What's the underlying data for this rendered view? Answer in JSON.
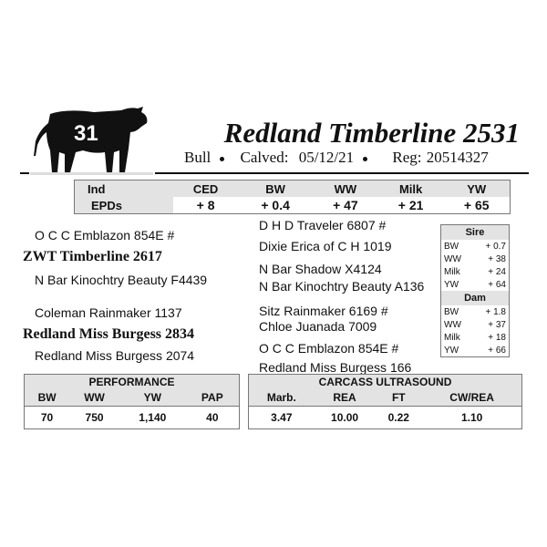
{
  "lot_number": "31",
  "animal": {
    "name": "Redland Timberline 2531",
    "sex": "Bull",
    "calved_label": "Calved:",
    "calved": "05/12/21",
    "reg_label": "Reg:",
    "reg": "20514327"
  },
  "epds": {
    "row_labels": [
      "Ind",
      "EPDs"
    ],
    "headers": [
      "CED",
      "BW",
      "WW",
      "Milk",
      "YW"
    ],
    "values": [
      "+ 8",
      "+ 0.4",
      "+ 47",
      "+ 21",
      "+ 65"
    ]
  },
  "pedigree": {
    "sire_sire": "O C C Emblazon 854E #",
    "sire": "ZWT Timberline 2617",
    "sire_dam": "N Bar Kinochtry Beauty F4439",
    "dam_sire": "Coleman Rainmaker 1137",
    "dam": "Redland Miss Burgess 2834",
    "dam_dam": "Redland Miss Burgess 2074",
    "ggp": [
      "D H D Traveler 6807 #",
      "Dixie Erica of C H 1019",
      "N Bar Shadow X4124",
      "N Bar Kinochtry Beauty A136",
      "Sitz Rainmaker 6169 #",
      "Chloe Juanada 7009",
      "O C C Emblazon 854E #",
      "Redland Miss Burgess 166"
    ]
  },
  "parent_epds": {
    "sire_label": "Sire",
    "sire": [
      {
        "k": "BW",
        "v": "+ 0.7"
      },
      {
        "k": "WW",
        "v": "+ 38"
      },
      {
        "k": "Milk",
        "v": "+ 24"
      },
      {
        "k": "YW",
        "v": "+ 64"
      }
    ],
    "dam_label": "Dam",
    "dam": [
      {
        "k": "BW",
        "v": "+ 1.8"
      },
      {
        "k": "WW",
        "v": "+ 37"
      },
      {
        "k": "Milk",
        "v": "+ 18"
      },
      {
        "k": "YW",
        "v": "+ 66"
      }
    ]
  },
  "performance": {
    "title": "PERFORMANCE",
    "headers": [
      "BW",
      "WW",
      "YW",
      "PAP"
    ],
    "values": [
      "70",
      "750",
      "1,140",
      "40"
    ]
  },
  "carcass": {
    "title": "CARCASS ULTRASOUND",
    "headers": [
      "Marb.",
      "REA",
      "FT",
      "CW/REA"
    ],
    "values": [
      "3.47",
      "10.00",
      "0.22",
      "1.10"
    ]
  }
}
